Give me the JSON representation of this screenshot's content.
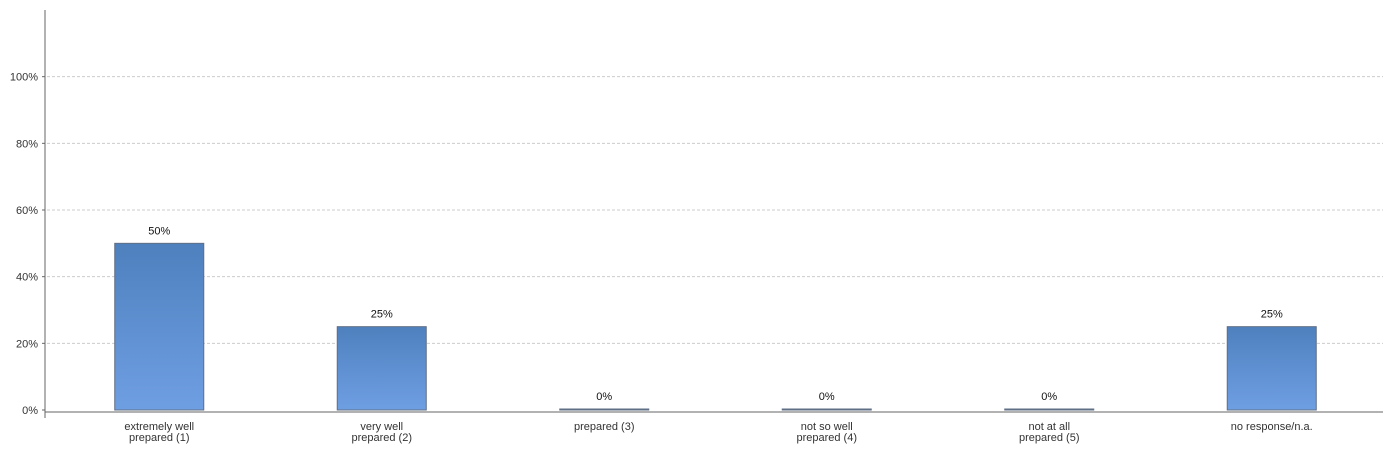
{
  "chart_data": {
    "type": "bar",
    "categories": [
      [
        "extremely well",
        "prepared (1)"
      ],
      [
        "very well",
        "prepared (2)"
      ],
      [
        "prepared (3)"
      ],
      [
        "not so well",
        "prepared (4)"
      ],
      [
        "not at all",
        "prepared (5)"
      ],
      [
        "no response/n.a."
      ]
    ],
    "values": [
      50,
      25,
      0,
      0,
      0,
      25
    ],
    "data_labels": [
      "50%",
      "25%",
      "0%",
      "0%",
      "0%",
      "25%"
    ],
    "y_ticks": [
      0,
      20,
      40,
      60,
      80,
      100
    ],
    "y_tick_labels": [
      "0%",
      "20%",
      "40%",
      "60%",
      "80%",
      "100%"
    ],
    "ylim": [
      0,
      120
    ],
    "grid": true,
    "colors": {
      "bar_top": "#4e80be",
      "bar_bottom": "#6f9fe3",
      "bar_border": "#5f6f86"
    }
  }
}
